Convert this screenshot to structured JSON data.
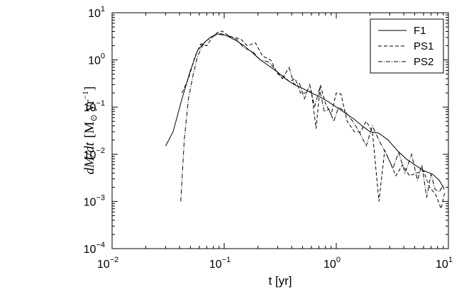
{
  "chart_data": {
    "type": "line",
    "xscale": "log",
    "yscale": "log",
    "xlim": [
      0.01,
      10
    ],
    "ylim": [
      0.0001,
      10
    ],
    "xlabel": "t [yr]",
    "ylabel_parts": {
      "dM": "dM",
      "slash": "/",
      "dt": "dt",
      "unit_open": "[M",
      "odot": "⊙",
      "unit_yr": " yr",
      "unit_exp": "−1",
      "unit_close": "]"
    },
    "xticks": [
      {
        "base": "10",
        "exp": "−2",
        "value": 0.01
      },
      {
        "base": "10",
        "exp": "−1",
        "value": 0.1
      },
      {
        "base": "10",
        "exp": "0",
        "value": 1
      },
      {
        "base": "10",
        "exp": "1",
        "value": 10
      }
    ],
    "yticks": [
      {
        "base": "10",
        "exp": "−4",
        "value": 0.0001
      },
      {
        "base": "10",
        "exp": "−3",
        "value": 0.001
      },
      {
        "base": "10",
        "exp": "−2",
        "value": 0.01
      },
      {
        "base": "10",
        "exp": "−1",
        "value": 0.1
      },
      {
        "base": "10",
        "exp": "0",
        "value": 1
      },
      {
        "base": "10",
        "exp": "1",
        "value": 10
      }
    ],
    "grid": false,
    "legend_position": "top-right",
    "series": [
      {
        "name": "F1",
        "style": "solid",
        "x": [
          0.03,
          0.035,
          0.042,
          0.05,
          0.058,
          0.066,
          0.075,
          0.085,
          0.095,
          0.11,
          0.13,
          0.15,
          0.18,
          0.21,
          0.25,
          0.3,
          0.35,
          0.42,
          0.5,
          0.6,
          0.7,
          0.85,
          1.0,
          1.2,
          1.45,
          1.7,
          2.0,
          2.4,
          2.9,
          3.5,
          4.2,
          5.0,
          6.0,
          7.2,
          8.3,
          9.2
        ],
        "y": [
          0.015,
          0.03,
          0.15,
          0.6,
          1.6,
          2.3,
          3.0,
          3.5,
          3.6,
          3.1,
          2.5,
          2.0,
          1.4,
          1.0,
          0.75,
          0.55,
          0.4,
          0.3,
          0.25,
          0.2,
          0.17,
          0.13,
          0.1,
          0.075,
          0.055,
          0.04,
          0.03,
          0.028,
          0.02,
          0.012,
          0.008,
          0.006,
          0.0045,
          0.0038,
          0.0028,
          0.0018
        ]
      },
      {
        "name": "PS1",
        "style": "dashed",
        "x": [
          0.042,
          0.048,
          0.055,
          0.062,
          0.07,
          0.078,
          0.087,
          0.096,
          0.105,
          0.12,
          0.14,
          0.16,
          0.19,
          0.22,
          0.26,
          0.3,
          0.34,
          0.38,
          0.43,
          0.48,
          0.53,
          0.6,
          0.66,
          0.72,
          0.8,
          0.9,
          1.0,
          1.1,
          1.25,
          1.45,
          1.65,
          1.85,
          2.1,
          2.4,
          2.7,
          3.0,
          3.4,
          3.9,
          4.5,
          5.2,
          6.0,
          6.8,
          7.7,
          8.6,
          9.3
        ],
        "y": [
          0.2,
          0.4,
          1.2,
          2.2,
          2.0,
          3.0,
          3.8,
          4.1,
          3.5,
          3.0,
          2.8,
          2.0,
          2.3,
          1.2,
          1.0,
          0.5,
          0.45,
          0.35,
          0.4,
          0.2,
          0.2,
          0.22,
          0.035,
          0.3,
          0.12,
          0.07,
          0.2,
          0.19,
          0.05,
          0.03,
          0.03,
          0.05,
          0.03,
          0.001,
          0.012,
          0.007,
          0.0035,
          0.006,
          0.0035,
          0.004,
          0.0045,
          0.002,
          0.0014,
          0.0007,
          0.0016
        ]
      },
      {
        "name": "PS2",
        "style": "dashdot",
        "x": [
          0.041,
          0.044,
          0.048,
          0.053,
          0.058,
          0.064,
          0.07,
          0.078,
          0.087,
          0.097,
          0.11,
          0.13,
          0.15,
          0.18,
          0.21,
          0.25,
          0.29,
          0.33,
          0.38,
          0.42,
          0.47,
          0.52,
          0.58,
          0.64,
          0.71,
          0.78,
          0.86,
          0.95,
          1.05,
          1.2,
          1.4,
          1.6,
          1.85,
          2.1,
          2.4,
          2.8,
          3.2,
          3.6,
          4.1,
          4.7,
          5.3,
          5.8,
          6.4,
          7.0,
          7.6,
          8.3,
          9.0
        ],
        "y": [
          0.001,
          0.02,
          0.15,
          0.5,
          1.2,
          2.0,
          2.6,
          3.1,
          3.5,
          3.4,
          3.2,
          2.7,
          1.8,
          1.5,
          1.0,
          0.9,
          0.6,
          0.4,
          0.7,
          0.3,
          0.32,
          0.15,
          0.3,
          0.1,
          0.25,
          0.08,
          0.09,
          0.05,
          0.1,
          0.08,
          0.05,
          0.03,
          0.015,
          0.04,
          0.02,
          0.01,
          0.005,
          0.011,
          0.004,
          0.01,
          0.0028,
          0.006,
          0.0012,
          0.0038,
          0.0018,
          0.0016,
          0.0022
        ]
      }
    ]
  }
}
